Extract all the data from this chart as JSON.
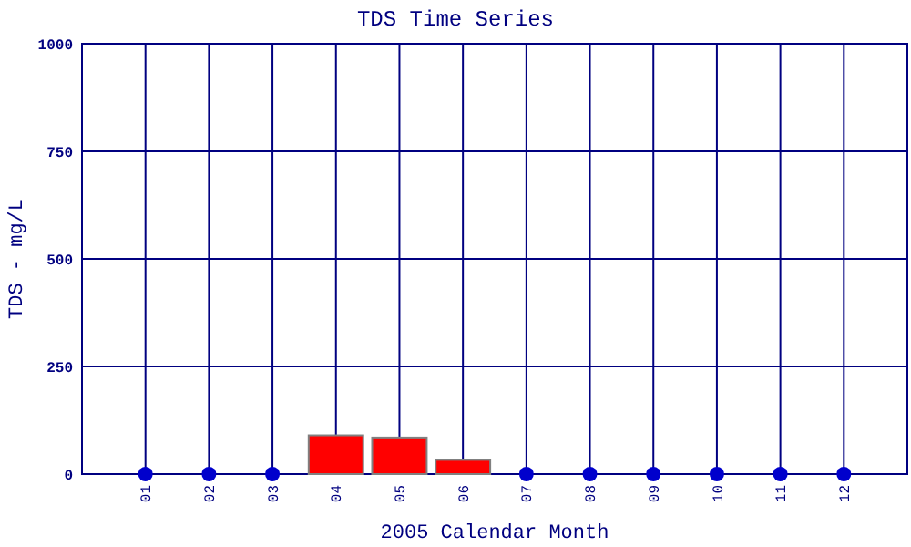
{
  "chart_data": {
    "type": "bar",
    "title": "TDS Time Series",
    "xlabel": "2005 Calendar Month",
    "ylabel": "TDS - mg/L",
    "categories": [
      "01",
      "02",
      "03",
      "04",
      "05",
      "06",
      "07",
      "08",
      "09",
      "10",
      "11",
      "12"
    ],
    "series": [
      {
        "color": "#ff0000",
        "values": [
          null,
          null,
          null,
          90,
          85,
          33,
          null,
          null,
          null,
          null,
          null,
          null
        ]
      },
      {
        "type": "scatter",
        "color": "#0000cc",
        "x": [
          "01",
          "02",
          "03",
          "07",
          "08",
          "09",
          "10",
          "11",
          "12"
        ],
        "values": [
          0,
          0,
          0,
          0,
          0,
          0,
          0,
          0,
          0
        ]
      }
    ],
    "ylim": [
      0,
      1000
    ],
    "yticks": [
      0,
      250,
      500,
      750,
      1000
    ],
    "grid": true,
    "marker": "circle"
  }
}
